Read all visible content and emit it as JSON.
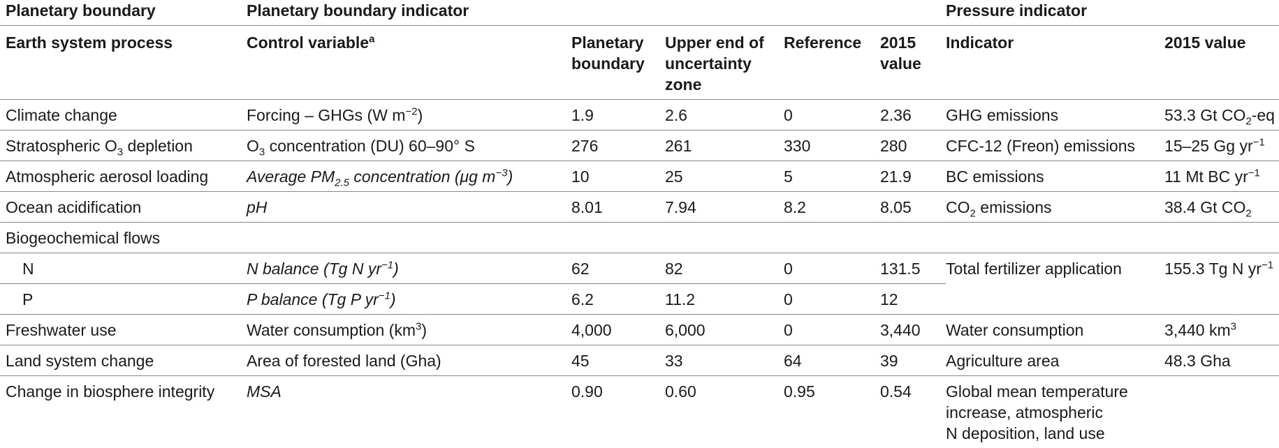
{
  "group_headers": {
    "boundary": "Planetary boundary",
    "indicator": "Planetary boundary indicator",
    "pressure": "Pressure indicator"
  },
  "col_headers": {
    "process": "Earth system process",
    "control": "Control variable",
    "control_sup": "a",
    "pb_line1": "Planetary",
    "pb_line2": "boundary",
    "upper_line1": "Upper end of",
    "upper_line2": "uncertainty",
    "upper_line3": "zone",
    "reference": "Reference",
    "v2015_line1": "2015",
    "v2015_line2": "value",
    "indicator": "Indicator",
    "pvalue": "2015 value"
  },
  "rows": {
    "climate": {
      "process": "Climate change",
      "control_pre": "Forcing – GHGs (W m",
      "control_sup": "−2",
      "control_post": ")",
      "pb": "1.9",
      "upper": "2.6",
      "ref": "0",
      "v2015": "2.36",
      "indicator": "GHG emissions",
      "pv_pre": "53.3 Gt CO",
      "pv_sub": "2",
      "pv_post": "-eq"
    },
    "ozone": {
      "process_pre": "Stratospheric O",
      "process_sub": "3",
      "process_post": " depletion",
      "control_pre": "O",
      "control_sub": "3",
      "control_post": " concentration (DU) 60–90° S",
      "pb": "276",
      "upper": "261",
      "ref": "330",
      "v2015": "280",
      "indicator": "CFC-12 (Freon) emissions",
      "pv_pre": "15–25 Gg yr",
      "pv_sup": "−1"
    },
    "aerosol": {
      "process": "Atmospheric aerosol loading",
      "control_pre": "Average PM",
      "control_sub": "2.5",
      "control_mid": " concentration (μg m",
      "control_sup": "−3",
      "control_post": ")",
      "pb": "10",
      "upper": "25",
      "ref": "5",
      "v2015": "21.9",
      "indicator": "BC emissions",
      "pv_pre": "11 Mt BC yr",
      "pv_sup": "−1"
    },
    "ocean": {
      "process": "Ocean acidification",
      "control": "pH",
      "pb": "8.01",
      "upper": "7.94",
      "ref": "8.2",
      "v2015": "8.05",
      "ind_pre": "CO",
      "ind_sub": "2",
      "ind_post": " emissions",
      "pv_pre": "38.4 Gt CO",
      "pv_sub": "2"
    },
    "biogeo": {
      "process": "Biogeochemical flows"
    },
    "n": {
      "process": "N",
      "control_pre": "N balance (Tg N yr",
      "control_sup": "−1",
      "control_post": ")",
      "pb": "62",
      "upper": "82",
      "ref": "0",
      "v2015": "131.5",
      "indicator": "Total fertilizer application",
      "pv_pre": "155.3 Tg N yr",
      "pv_sup": "−1"
    },
    "p": {
      "process": "P",
      "control_pre": "P balance (Tg P yr",
      "control_sup": "−1",
      "control_post": ")",
      "pb": "6.2",
      "upper": "11.2",
      "ref": "0",
      "v2015": "12"
    },
    "water": {
      "process": "Freshwater use",
      "control_pre": "Water consumption (km",
      "control_sup": "3",
      "control_post": ")",
      "pb": "4,000",
      "upper": "6,000",
      "ref": "0",
      "v2015": "3,440",
      "indicator": "Water consumption",
      "pv_pre": "3,440 km",
      "pv_sup": "3"
    },
    "land": {
      "process": "Land system change",
      "control": "Area of forested land (Gha)",
      "pb": "45",
      "upper": "33",
      "ref": "64",
      "v2015": "39",
      "indicator": "Agriculture area",
      "pvalue": "48.3 Gha"
    },
    "bio": {
      "process": "Change in biosphere integrity",
      "control": "MSA",
      "pb": "0.90",
      "upper": "0.60",
      "ref": "0.95",
      "v2015": "0.54",
      "ind_line1": "Global mean temperature",
      "ind_line2": "increase, atmospheric",
      "ind_line3": "N deposition, land use"
    }
  }
}
